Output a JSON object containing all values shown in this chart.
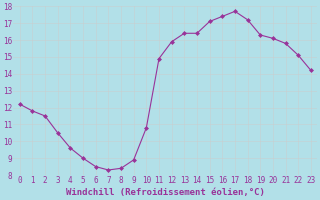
{
  "x": [
    0,
    1,
    2,
    3,
    4,
    5,
    6,
    7,
    8,
    9,
    10,
    11,
    12,
    13,
    14,
    15,
    16,
    17,
    18,
    19,
    20,
    21,
    22,
    23
  ],
  "y": [
    12.2,
    11.8,
    11.5,
    10.5,
    9.6,
    9.0,
    8.5,
    8.3,
    8.4,
    8.9,
    10.8,
    14.9,
    15.9,
    16.4,
    16.4,
    17.1,
    17.4,
    17.7,
    17.2,
    16.3,
    16.1,
    15.8,
    15.1,
    14.2
  ],
  "line_color": "#993399",
  "marker_color": "#993399",
  "background_color": "#b2e0e8",
  "grid_color": "#cccccc",
  "xlabel": "Windchill (Refroidissement éolien,°C)",
  "xlabel_color": "#993399",
  "ylim": [
    8,
    18
  ],
  "xlim_min": -0.5,
  "xlim_max": 23.5,
  "yticks": [
    8,
    9,
    10,
    11,
    12,
    13,
    14,
    15,
    16,
    17,
    18
  ],
  "xticks": [
    0,
    1,
    2,
    3,
    4,
    5,
    6,
    7,
    8,
    9,
    10,
    11,
    12,
    13,
    14,
    15,
    16,
    17,
    18,
    19,
    20,
    21,
    22,
    23
  ],
  "tick_label_color": "#993399",
  "axis_fontsize": 5.5,
  "label_fontsize": 6.5
}
